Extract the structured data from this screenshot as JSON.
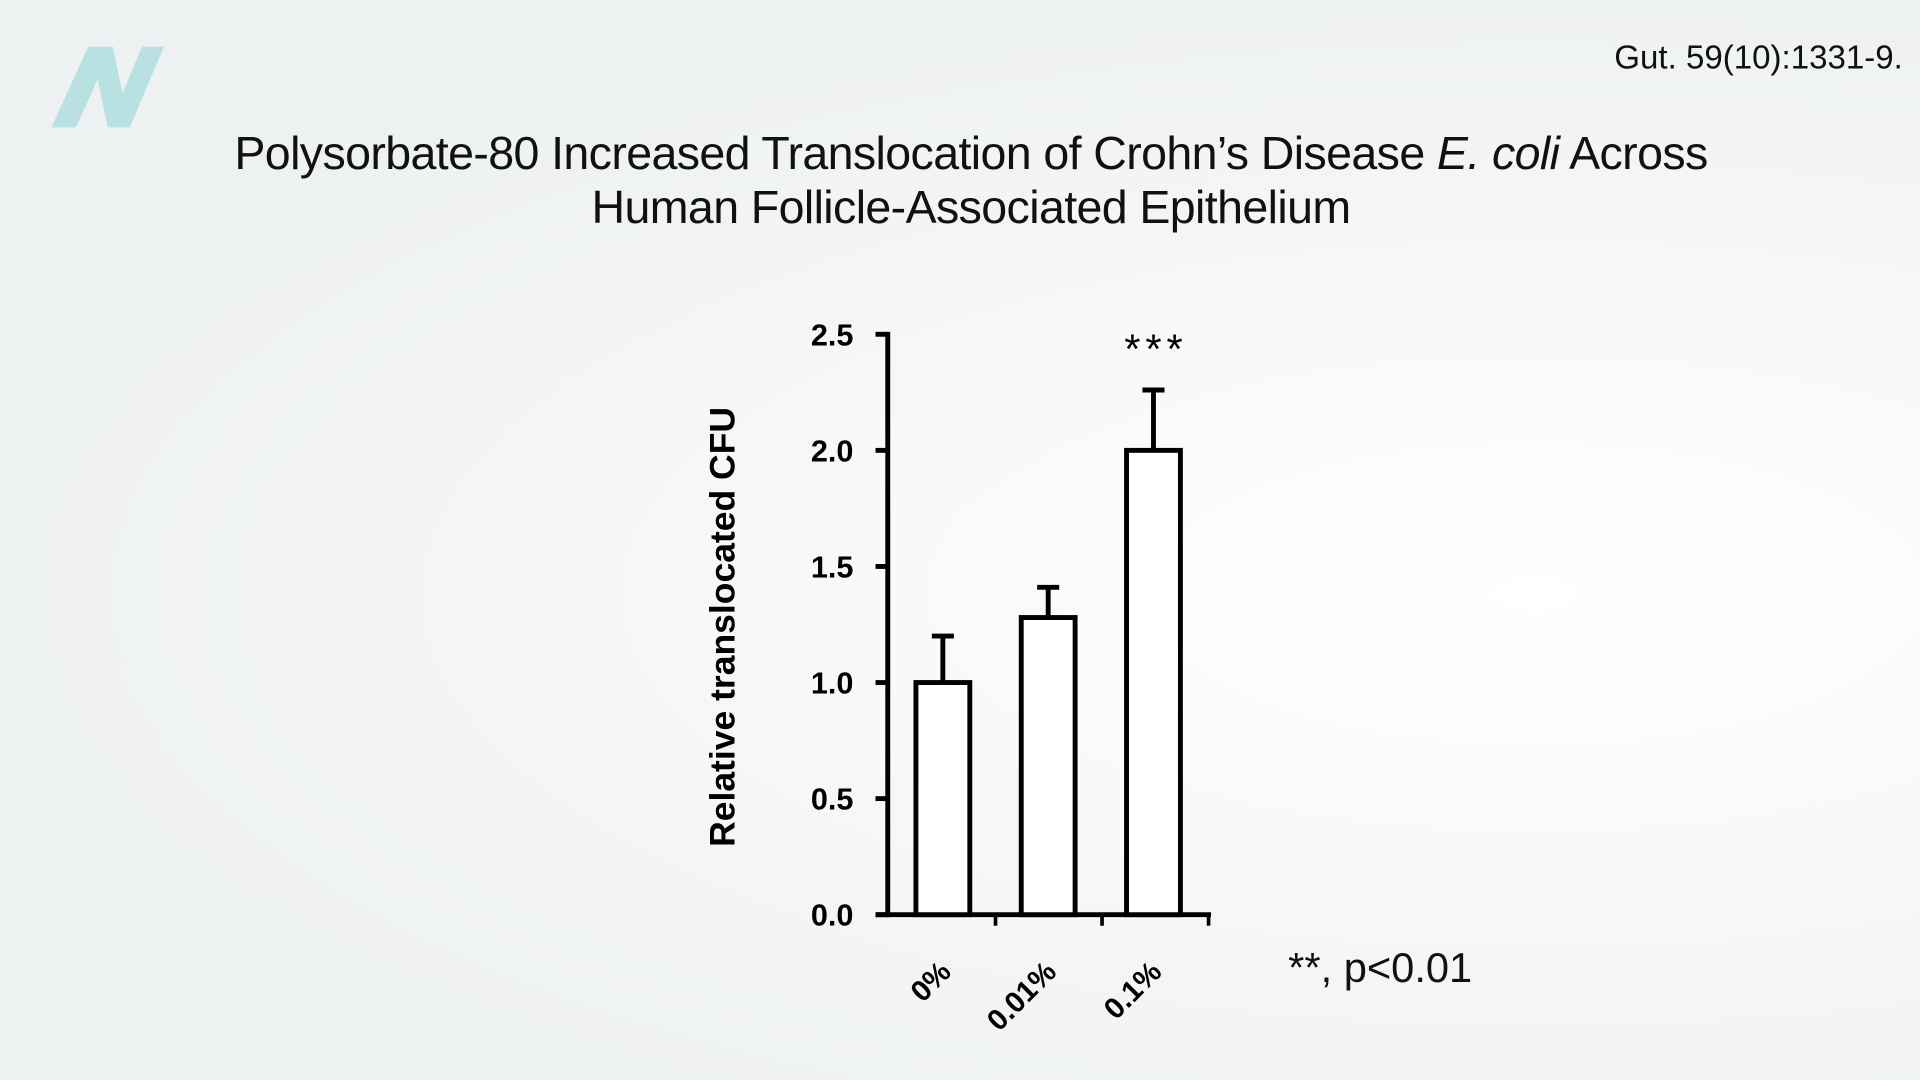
{
  "citation": "Gut. 59(10):1331-9.",
  "title": {
    "line1_a": "Polysorbate-80 Increased Translocation of Crohn’s Disease ",
    "line1_italic": "E. coli",
    "line1_b": " Across",
    "line2": "Human Follicle-Associated Epithelium"
  },
  "logo": {
    "letter": "N",
    "color": "#b9e1e2"
  },
  "note": "**, p<0.01",
  "chart_data": {
    "type": "bar",
    "categories": [
      "0%",
      "0.01%",
      "0.1%"
    ],
    "values": [
      1.0,
      1.28,
      2.0
    ],
    "error_upper": [
      1.2,
      1.41,
      2.26
    ],
    "annotations": [
      {
        "category": "0.1%",
        "text": "***"
      }
    ],
    "ylabel": "Relative translocated CFU",
    "xlabel": "",
    "ylim": [
      0,
      2.5
    ],
    "yticks": [
      "0.0",
      "0.5",
      "1.0",
      "1.5",
      "2.0",
      "2.5"
    ],
    "grid": false,
    "bar_fill": "#ffffff",
    "stroke": "#000000"
  }
}
